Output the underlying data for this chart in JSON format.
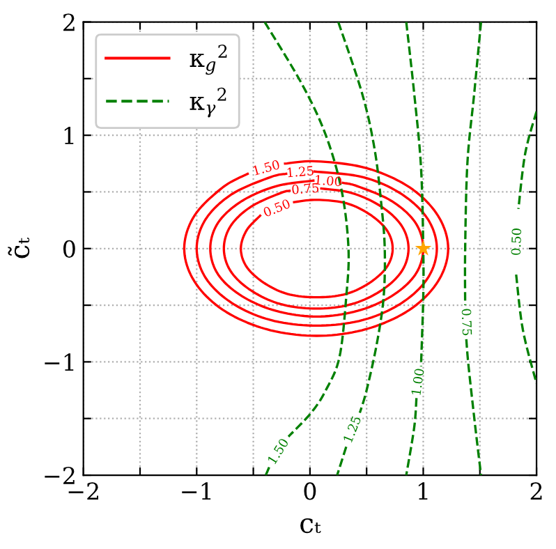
{
  "chart_data": {
    "type": "line",
    "xlabel": "cₜ",
    "ylabel": "c̃ₜ",
    "xlim": [
      -2,
      2
    ],
    "ylim": [
      -2,
      2
    ],
    "xticks": [
      -2,
      {
        "value": -1.5,
        "label": null
      },
      -1,
      {
        "value": -0.5,
        "label": null
      },
      0,
      {
        "value": 0.5,
        "label": null
      },
      1,
      {
        "value": 1.5,
        "label": null
      },
      2
    ],
    "yticks": [
      -2,
      {
        "value": -1.5,
        "label": null
      },
      -1,
      {
        "value": -0.5,
        "label": null
      },
      0,
      {
        "value": 0.5,
        "label": null
      },
      1,
      {
        "value": 1.5,
        "label": null
      },
      2
    ],
    "grid": true,
    "legend": "top left",
    "line_style": "solid",
    "marker": "none",
    "series": [
      {
        "name": "κ$_{g}$$^{2}$",
        "color": "#ff0000",
        "x": [
          -0.14,
          0.06,
          0.32,
          0.53,
          0.68,
          0.73,
          0.68,
          0.53,
          0.32,
          0.06,
          -0.2,
          -0.41,
          -0.56,
          -0.61,
          -0.56,
          -0.44
        ],
        "values": [
          0.41,
          0.43,
          0.4,
          0.3,
          0.16,
          0,
          -0.16,
          -0.3,
          -0.4,
          -0.43,
          -0.4,
          -0.3,
          -0.16,
          0,
          0.16,
          0.29
        ]
      },
      {
        "color": "#ff0000",
        "x": [
          0.1,
          0.37,
          0.63,
          0.81,
          0.87,
          0.81,
          0.63,
          0.37,
          0.06,
          -0.26,
          -0.52,
          -0.7,
          -0.76,
          -0.7,
          -0.52,
          -0.26,
          -0.18
        ],
        "values": [
          0.53,
          0.49,
          0.37,
          0.2,
          0,
          -0.2,
          -0.37,
          -0.49,
          -0.53,
          -0.49,
          -0.37,
          -0.2,
          0,
          0.2,
          0.37,
          0.49,
          0.51
        ]
      },
      {
        "color": "#ff0000",
        "x": [
          0.29,
          0.42,
          0.72,
          0.93,
          1.0,
          0.93,
          0.72,
          0.42,
          0.06,
          -0.3,
          -0.6,
          -0.81,
          -0.88,
          -0.81,
          -0.6,
          -0.3,
          0.03
        ],
        "values": [
          0.58,
          0.55,
          0.42,
          0.23,
          0,
          -0.23,
          -0.42,
          -0.55,
          -0.6,
          -0.55,
          -0.42,
          -0.23,
          0,
          0.23,
          0.42,
          0.55,
          0.6
        ]
      },
      {
        "color": "#ff0000",
        "x": [
          0.04,
          0.47,
          0.81,
          1.04,
          1.12,
          1.04,
          0.81,
          0.47,
          0.06,
          -0.35,
          -0.69,
          -0.92,
          -1.0,
          -0.92,
          -0.69,
          -0.35,
          -0.21
        ],
        "values": [
          0.68,
          0.63,
          0.48,
          0.26,
          0,
          -0.26,
          -0.48,
          -0.63,
          -0.68,
          -0.63,
          -0.48,
          -0.26,
          0,
          0.26,
          0.48,
          0.63,
          0.66
        ]
      },
      {
        "color": "#ff0000",
        "x": [
          -0.22,
          0.06,
          0.5,
          0.88,
          1.13,
          1.22,
          1.13,
          0.88,
          0.5,
          0.06,
          -0.39,
          -0.77,
          -1.02,
          -1.11,
          -1.02,
          -0.77,
          -0.55
        ],
        "values": [
          0.75,
          0.77,
          0.71,
          0.54,
          0.29,
          0,
          -0.29,
          -0.54,
          -0.71,
          -0.77,
          -0.71,
          -0.54,
          -0.29,
          0,
          0.29,
          0.54,
          0.66
        ]
      },
      {
        "name": "κ$_{γ}$$^{2}$",
        "color": "#008000",
        "line_style": "dashed",
        "x": [
          -0.4,
          -0.07,
          0.14,
          0.28,
          0.34,
          0.32,
          0.26,
          0.14,
          0.01,
          -0.19,
          null,
          -0.36,
          -0.39
        ],
        "values": [
          2.0,
          1.45,
          1.0,
          0.51,
          0,
          -0.43,
          -0.96,
          -1.25,
          -1.45,
          -1.66,
          null,
          -1.93,
          -2.0
        ]
      },
      {
        "color": "#008000",
        "line_style": "dashed",
        "x": [
          0.25,
          0.46,
          0.57,
          0.63,
          0.66,
          0.65,
          0.59,
          0.5,
          0.44,
          0.38,
          0.32,
          0.24
        ],
        "values": [
          2.0,
          1.37,
          0.88,
          0.39,
          0,
          -0.43,
          -0.84,
          -1.25,
          -1.45,
          null,
          -1.75,
          -2.0
        ]
      },
      {
        "color": "#008000",
        "line_style": "dashed",
        "x": [
          0.85,
          0.92,
          0.98,
          1.0,
          1.0,
          0.98,
          null,
          0.94,
          0.92,
          0.85
        ],
        "values": [
          2.0,
          1.37,
          0.72,
          0,
          -0.43,
          -1.04,
          null,
          -1.32,
          -1.58,
          -2.0
        ]
      },
      {
        "color": "#008000",
        "line_style": "dashed",
        "x": [
          1.51,
          1.45,
          1.39,
          1.37,
          1.37,
          null,
          1.38,
          1.4,
          1.46,
          1.51
        ],
        "values": [
          2.0,
          1.37,
          0.76,
          0,
          -0.5,
          null,
          -0.8,
          -1.04,
          -1.58,
          -2.0
        ]
      },
      {
        "color": "#008000",
        "line_style": "dashed",
        "x": [
          2.0,
          1.9,
          1.84,
          null,
          1.82,
          1.88,
          2.0
        ],
        "values": [
          1.21,
          0.84,
          0.35,
          null,
          -0.23,
          -0.72,
          -1.19
        ]
      },
      {
        "type": "scatter",
        "color": "#ffa500",
        "marker": "star",
        "x": [
          1
        ],
        "values": [
          0
        ]
      }
    ],
    "annotations": [
      "0.50",
      "0.75",
      "1.00",
      "1.25",
      "1.50",
      "1.50",
      "1.25",
      "1.00",
      "0.75",
      "0.50"
    ]
  }
}
